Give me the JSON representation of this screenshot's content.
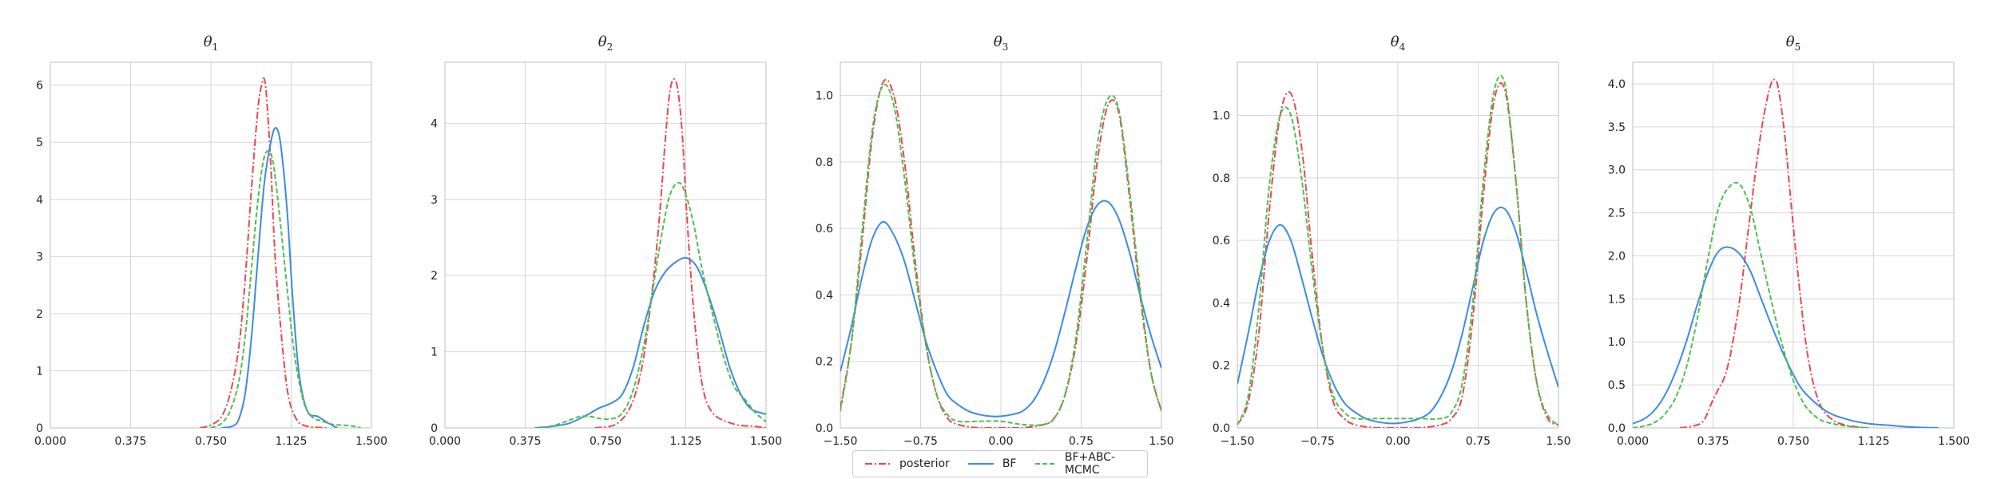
{
  "chart_data": [
    {
      "type": "line",
      "title": "θ1",
      "title_main": "θ",
      "title_sub": "1",
      "xlim": [
        0,
        1.5
      ],
      "ylim": [
        0,
        6.4
      ],
      "xticks": [
        0,
        0.375,
        0.75,
        1.125,
        1.5
      ],
      "xtick_labels": [
        "0.000",
        "0.375",
        "0.750",
        "1.125",
        "1.500"
      ],
      "yticks": [
        0,
        1,
        2,
        3,
        4,
        5,
        6
      ],
      "ytick_labels": [
        "0",
        "1",
        "2",
        "3",
        "4",
        "5",
        "6"
      ],
      "grid": true,
      "series": [
        {
          "name": "posterior",
          "x": [
            0.7,
            0.75,
            0.8,
            0.84,
            0.88,
            0.91,
            0.94,
            0.97,
            0.99,
            1.0,
            1.01,
            1.03,
            1.05,
            1.08,
            1.11,
            1.15,
            1.2,
            1.3
          ],
          "y": [
            0,
            0.05,
            0.2,
            0.6,
            1.4,
            2.6,
            4.2,
            5.6,
            6.05,
            6.1,
            5.8,
            4.6,
            3.0,
            1.6,
            0.6,
            0.15,
            0.03,
            0
          ]
        },
        {
          "name": "BF",
          "x": [
            0.8,
            0.85,
            0.88,
            0.91,
            0.94,
            0.97,
            1.0,
            1.03,
            1.05,
            1.07,
            1.09,
            1.11,
            1.13,
            1.16,
            1.2,
            1.25,
            1.3,
            1.34
          ],
          "y": [
            0,
            0.03,
            0.15,
            0.6,
            1.6,
            3.0,
            4.3,
            5.0,
            5.25,
            5.1,
            4.5,
            3.6,
            2.4,
            1.0,
            0.3,
            0.2,
            0.08,
            0
          ]
        },
        {
          "name": "BF+ABC-MCMC",
          "x": [
            0.75,
            0.8,
            0.84,
            0.88,
            0.91,
            0.94,
            0.97,
            1.0,
            1.03,
            1.05,
            1.08,
            1.11,
            1.14,
            1.18,
            1.22,
            1.27,
            1.32,
            1.4,
            1.45
          ],
          "y": [
            0,
            0.08,
            0.3,
            0.8,
            1.6,
            2.8,
            4.0,
            4.75,
            4.8,
            4.4,
            3.4,
            2.3,
            1.3,
            0.5,
            0.2,
            0.12,
            0.06,
            0.04,
            0
          ]
        }
      ]
    },
    {
      "type": "line",
      "title": "θ2",
      "title_main": "θ",
      "title_sub": "2",
      "xlim": [
        0,
        1.5
      ],
      "ylim": [
        0,
        4.8
      ],
      "xticks": [
        0,
        0.375,
        0.75,
        1.125,
        1.5
      ],
      "xtick_labels": [
        "0.000",
        "0.375",
        "0.750",
        "1.125",
        "1.500"
      ],
      "yticks": [
        0,
        1,
        2,
        3,
        4
      ],
      "ytick_labels": [
        "0",
        "1",
        "2",
        "3",
        "4"
      ],
      "grid": true,
      "series": [
        {
          "name": "posterior",
          "x": [
            0.7,
            0.8,
            0.87,
            0.92,
            0.96,
            1.0,
            1.03,
            1.05,
            1.07,
            1.09,
            1.11,
            1.13,
            1.16,
            1.2,
            1.25,
            1.35,
            1.45,
            1.5
          ],
          "y": [
            0,
            0.05,
            0.3,
            0.8,
            1.6,
            2.7,
            3.8,
            4.4,
            4.58,
            4.4,
            3.8,
            2.8,
            1.6,
            0.6,
            0.2,
            0.05,
            0.02,
            0
          ]
        },
        {
          "name": "BF",
          "x": [
            0.42,
            0.5,
            0.58,
            0.65,
            0.72,
            0.78,
            0.83,
            0.88,
            0.93,
            0.98,
            1.03,
            1.08,
            1.13,
            1.18,
            1.23,
            1.28,
            1.33,
            1.38,
            1.43,
            1.5
          ],
          "y": [
            0,
            0.02,
            0.06,
            0.15,
            0.26,
            0.33,
            0.45,
            0.8,
            1.35,
            1.8,
            2.05,
            2.18,
            2.23,
            2.1,
            1.75,
            1.3,
            0.8,
            0.45,
            0.25,
            0.18
          ]
        },
        {
          "name": "BF+ABC-MCMC",
          "x": [
            0.45,
            0.52,
            0.58,
            0.63,
            0.68,
            0.73,
            0.78,
            0.83,
            0.88,
            0.93,
            0.97,
            1.01,
            1.05,
            1.09,
            1.12,
            1.16,
            1.2,
            1.25,
            1.3,
            1.35,
            1.4,
            1.45,
            1.5
          ],
          "y": [
            0,
            0.04,
            0.1,
            0.15,
            0.15,
            0.12,
            0.12,
            0.2,
            0.5,
            1.1,
            1.8,
            2.5,
            3.05,
            3.22,
            3.1,
            2.7,
            2.1,
            1.5,
            0.95,
            0.55,
            0.38,
            0.2,
            0.08
          ]
        }
      ]
    },
    {
      "type": "line",
      "title": "θ3",
      "title_main": "θ",
      "title_sub": "3",
      "xlim": [
        -1.5,
        1.5
      ],
      "ylim": [
        0,
        1.1
      ],
      "xticks": [
        -1.5,
        -0.75,
        0,
        0.75,
        1.5
      ],
      "xtick_labels": [
        "−1.50",
        "−0.75",
        "0.00",
        "0.75",
        "1.50"
      ],
      "yticks": [
        0,
        0.2,
        0.4,
        0.6,
        0.8,
        1.0
      ],
      "ytick_labels": [
        "0.0",
        "0.2",
        "0.4",
        "0.6",
        "0.8",
        "1.0"
      ],
      "grid": true,
      "series": [
        {
          "name": "posterior",
          "x": [
            -1.5,
            -1.4,
            -1.3,
            -1.2,
            -1.1,
            -1.0,
            -0.9,
            -0.8,
            -0.7,
            -0.6,
            -0.5,
            -0.4,
            -0.2,
            0.0,
            0.2,
            0.4,
            0.5,
            0.6,
            0.7,
            0.8,
            0.9,
            1.0,
            1.1,
            1.2,
            1.3,
            1.4,
            1.5
          ],
          "y": [
            0.06,
            0.25,
            0.55,
            0.88,
            1.04,
            1.0,
            0.8,
            0.5,
            0.25,
            0.1,
            0.03,
            0.01,
            0.0,
            0.0,
            0.0,
            0.01,
            0.03,
            0.1,
            0.25,
            0.5,
            0.8,
            0.97,
            0.95,
            0.7,
            0.4,
            0.17,
            0.05
          ]
        },
        {
          "name": "BF",
          "x": [
            -1.5,
            -1.4,
            -1.3,
            -1.2,
            -1.1,
            -1.0,
            -0.9,
            -0.8,
            -0.7,
            -0.6,
            -0.5,
            -0.4,
            -0.3,
            -0.2,
            -0.1,
            0.0,
            0.1,
            0.2,
            0.3,
            0.4,
            0.5,
            0.6,
            0.7,
            0.8,
            0.9,
            1.0,
            1.1,
            1.2,
            1.3,
            1.4,
            1.5
          ],
          "y": [
            0.17,
            0.3,
            0.45,
            0.57,
            0.62,
            0.58,
            0.5,
            0.38,
            0.26,
            0.17,
            0.1,
            0.07,
            0.05,
            0.04,
            0.035,
            0.035,
            0.04,
            0.05,
            0.08,
            0.14,
            0.23,
            0.35,
            0.48,
            0.6,
            0.67,
            0.68,
            0.63,
            0.53,
            0.4,
            0.28,
            0.18
          ]
        },
        {
          "name": "BF+ABC-MCMC",
          "x": [
            -1.5,
            -1.4,
            -1.3,
            -1.2,
            -1.1,
            -1.0,
            -0.9,
            -0.8,
            -0.7,
            -0.6,
            -0.5,
            -0.4,
            -0.2,
            0.0,
            0.2,
            0.4,
            0.5,
            0.6,
            0.7,
            0.8,
            0.9,
            1.0,
            1.1,
            1.2,
            1.3,
            1.4,
            1.5
          ],
          "y": [
            0.05,
            0.25,
            0.58,
            0.9,
            1.03,
            0.97,
            0.75,
            0.47,
            0.25,
            0.1,
            0.04,
            0.02,
            0.02,
            0.02,
            0.01,
            0.01,
            0.03,
            0.1,
            0.27,
            0.55,
            0.85,
            0.99,
            0.96,
            0.72,
            0.42,
            0.17,
            0.05
          ]
        }
      ]
    },
    {
      "type": "line",
      "title": "θ4",
      "title_main": "θ",
      "title_sub": "4",
      "xlim": [
        -1.5,
        1.5
      ],
      "ylim": [
        0,
        1.17
      ],
      "xticks": [
        -1.5,
        -0.75,
        0,
        0.75,
        1.5
      ],
      "xtick_labels": [
        "−1.50",
        "−0.75",
        "0.00",
        "0.75",
        "1.50"
      ],
      "yticks": [
        0,
        0.2,
        0.4,
        0.6,
        0.8,
        1.0
      ],
      "ytick_labels": [
        "0.0",
        "0.2",
        "0.4",
        "0.6",
        "0.8",
        "1.0"
      ],
      "grid": true,
      "series": [
        {
          "name": "posterior",
          "x": [
            -1.5,
            -1.4,
            -1.3,
            -1.2,
            -1.1,
            -1.0,
            -0.9,
            -0.8,
            -0.7,
            -0.6,
            -0.5,
            -0.4,
            -0.2,
            0.0,
            0.2,
            0.4,
            0.5,
            0.6,
            0.7,
            0.8,
            0.9,
            1.0,
            1.1,
            1.2,
            1.3,
            1.4,
            1.5
          ],
          "y": [
            0.01,
            0.08,
            0.3,
            0.7,
            1.0,
            1.07,
            0.9,
            0.55,
            0.25,
            0.08,
            0.03,
            0.01,
            0.0,
            0.0,
            0.0,
            0.01,
            0.03,
            0.1,
            0.35,
            0.75,
            1.05,
            1.08,
            0.8,
            0.4,
            0.14,
            0.03,
            0.01
          ]
        },
        {
          "name": "BF",
          "x": [
            -1.5,
            -1.4,
            -1.3,
            -1.2,
            -1.1,
            -1.0,
            -0.9,
            -0.8,
            -0.7,
            -0.6,
            -0.5,
            -0.4,
            -0.3,
            -0.2,
            -0.1,
            0.0,
            0.1,
            0.2,
            0.3,
            0.4,
            0.5,
            0.6,
            0.7,
            0.8,
            0.9,
            1.0,
            1.1,
            1.2,
            1.3,
            1.4,
            1.5
          ],
          "y": [
            0.14,
            0.3,
            0.47,
            0.6,
            0.65,
            0.6,
            0.48,
            0.35,
            0.23,
            0.14,
            0.08,
            0.05,
            0.03,
            0.02,
            0.015,
            0.015,
            0.02,
            0.03,
            0.05,
            0.1,
            0.18,
            0.3,
            0.45,
            0.6,
            0.69,
            0.7,
            0.63,
            0.5,
            0.36,
            0.24,
            0.13
          ]
        },
        {
          "name": "BF+ABC-MCMC",
          "x": [
            -1.5,
            -1.4,
            -1.3,
            -1.2,
            -1.1,
            -1.0,
            -0.9,
            -0.8,
            -0.7,
            -0.6,
            -0.5,
            -0.4,
            -0.2,
            0.0,
            0.2,
            0.4,
            0.5,
            0.6,
            0.7,
            0.8,
            0.9,
            1.0,
            1.1,
            1.2,
            1.3,
            1.4,
            1.5
          ],
          "y": [
            0.01,
            0.1,
            0.38,
            0.78,
            1.0,
            1.0,
            0.8,
            0.5,
            0.25,
            0.1,
            0.05,
            0.03,
            0.03,
            0.03,
            0.03,
            0.03,
            0.05,
            0.14,
            0.4,
            0.8,
            1.08,
            1.1,
            0.8,
            0.4,
            0.14,
            0.04,
            0.01
          ]
        }
      ]
    },
    {
      "type": "line",
      "title": "θ5",
      "title_main": "θ",
      "title_sub": "5",
      "xlim": [
        0,
        1.5
      ],
      "ylim": [
        0,
        4.25
      ],
      "xticks": [
        0,
        0.375,
        0.75,
        1.125,
        1.5
      ],
      "xtick_labels": [
        "0.000",
        "0.375",
        "0.750",
        "1.125",
        "1.500"
      ],
      "yticks": [
        0,
        0.5,
        1.0,
        1.5,
        2.0,
        2.5,
        3.0,
        3.5,
        4.0
      ],
      "ytick_labels": [
        "0.0",
        "0.5",
        "1.0",
        "1.5",
        "2.0",
        "2.5",
        "3.0",
        "3.5",
        "4.0"
      ],
      "grid": true,
      "series": [
        {
          "name": "posterior",
          "x": [
            0.22,
            0.28,
            0.33,
            0.37,
            0.4,
            0.43,
            0.46,
            0.5,
            0.54,
            0.58,
            0.61,
            0.64,
            0.66,
            0.68,
            0.71,
            0.74,
            0.78,
            0.82,
            0.87,
            0.93,
            1.0,
            1.1
          ],
          "y": [
            0,
            0.02,
            0.08,
            0.3,
            0.45,
            0.6,
            0.9,
            1.5,
            2.3,
            3.1,
            3.6,
            3.95,
            4.05,
            3.95,
            3.4,
            2.6,
            1.6,
            0.8,
            0.3,
            0.1,
            0.03,
            0
          ]
        },
        {
          "name": "BF",
          "x": [
            0.0,
            0.05,
            0.1,
            0.15,
            0.2,
            0.25,
            0.3,
            0.35,
            0.4,
            0.45,
            0.5,
            0.55,
            0.6,
            0.65,
            0.7,
            0.75,
            0.8,
            0.9,
            1.0,
            1.1,
            1.2,
            1.3,
            1.43
          ],
          "y": [
            0.05,
            0.1,
            0.2,
            0.38,
            0.65,
            1.0,
            1.42,
            1.8,
            2.05,
            2.1,
            2.02,
            1.82,
            1.5,
            1.18,
            0.88,
            0.62,
            0.42,
            0.2,
            0.1,
            0.05,
            0.03,
            0.01,
            0
          ]
        },
        {
          "name": "BF+ABC-MCMC",
          "x": [
            0.0,
            0.05,
            0.1,
            0.15,
            0.2,
            0.25,
            0.3,
            0.35,
            0.4,
            0.45,
            0.5,
            0.55,
            0.6,
            0.65,
            0.7,
            0.75,
            0.8,
            0.85,
            0.9,
            1.0,
            1.1
          ],
          "y": [
            0,
            0.02,
            0.06,
            0.16,
            0.35,
            0.7,
            1.25,
            1.95,
            2.55,
            2.8,
            2.83,
            2.55,
            2.0,
            1.45,
            0.95,
            0.55,
            0.28,
            0.14,
            0.07,
            0.02,
            0
          ]
        }
      ]
    }
  ],
  "legend": {
    "placement": "bottom-center",
    "items": [
      {
        "label": "posterior",
        "color": "#e8474f",
        "dash": "dashdot"
      },
      {
        "label": "BF",
        "color": "#3d8be0",
        "dash": "solid"
      },
      {
        "label": "BF+ABC-MCMC",
        "color": "#4cbf4c",
        "dash": "dashed"
      }
    ]
  },
  "colors": {
    "posterior": "#e8474f",
    "BF": "#3d8be0",
    "BF+ABC-MCMC": "#4cbf4c",
    "grid": "#d6d6d6",
    "axes": "#bfbfbf"
  }
}
